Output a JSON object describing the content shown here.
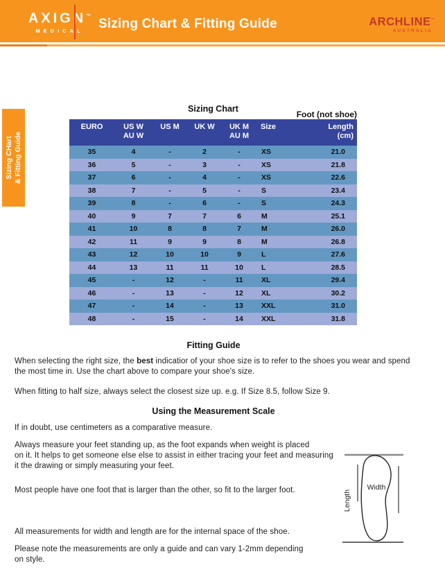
{
  "header": {
    "title": "Sizing Chart & Fitting Guide",
    "brand_left": {
      "name": "AXIGN",
      "tm": "TM",
      "sub": "MEDICAL"
    },
    "brand_right": {
      "name": "ARCHLINE",
      "tm": "TM",
      "sub": "AUSTRALIA"
    }
  },
  "side_tab": {
    "line1": "Sizing CHart",
    "line2": "& Fitting Guide"
  },
  "sizing_chart": {
    "title": "Sizing Chart",
    "note": "Foot (not shoe)",
    "columns": [
      [
        "EURO",
        ""
      ],
      [
        "US W",
        "AU W"
      ],
      [
        "US M",
        ""
      ],
      [
        "UK W",
        ""
      ],
      [
        "UK M",
        "AU M"
      ],
      [
        "Size",
        ""
      ],
      [
        "Length",
        "(cm)"
      ]
    ],
    "rows": [
      [
        "35",
        "4",
        "-",
        "2",
        "-",
        "XS",
        "21.0"
      ],
      [
        "36",
        "5",
        "-",
        "3",
        "-",
        "XS",
        "21.8"
      ],
      [
        "37",
        "6",
        "-",
        "4",
        "-",
        "XS",
        "22.6"
      ],
      [
        "38",
        "7",
        "-",
        "5",
        "-",
        "S",
        "23.4"
      ],
      [
        "39",
        "8",
        "-",
        "6",
        "-",
        "S",
        "24.3"
      ],
      [
        "40",
        "9",
        "7",
        "7",
        "6",
        "M",
        "25.1"
      ],
      [
        "41",
        "10",
        "8",
        "8",
        "7",
        "M",
        "26.0"
      ],
      [
        "42",
        "11",
        "9",
        "9",
        "8",
        "M",
        "26.8"
      ],
      [
        "43",
        "12",
        "10",
        "10",
        "9",
        "L",
        "27.6"
      ],
      [
        "44",
        "13",
        "11",
        "11",
        "10",
        "L",
        "28.5"
      ],
      [
        "45",
        "-",
        "12",
        "-",
        "11",
        "XL",
        "29.4"
      ],
      [
        "46",
        "-",
        "13",
        "-",
        "12",
        "XL",
        "30.2"
      ],
      [
        "47",
        "-",
        "14",
        "-",
        "13",
        "XXL",
        "31.0"
      ],
      [
        "48",
        "-",
        "15",
        "-",
        "14",
        "XXL",
        "31.8"
      ]
    ]
  },
  "fitting_guide": {
    "heading": "Fitting Guide",
    "p1_pre": "When selecting the right size, the ",
    "p1_bold": "best",
    "p1_post": " indicatior of your shoe size is to refer to the shoes you wear and spend\nthe most time in. Use the chart above to compare your shoe's size.",
    "p2": "When fitting to half size, always select the closest size up. e.g. If Size 8.5, follow Size 9."
  },
  "measurement": {
    "heading": "Using the Measurement Scale",
    "p1": "If in doubt, use centimeters as a comparative measure.",
    "p2": "Always measure your feet standing up, as the foot expands when weight is placed\non it. It helps to get someone else else to assist in either tracing your feet and measuring\nit the drawing or simply measuring your feet.",
    "p3": "Most people have one foot that is larger than the other, so fit to the larger foot.",
    "p4": "All measurements for width and length are for the internal space of the shoe.",
    "p5": "Please note the measurements are only a guide and can vary 1-2mm depending\non style."
  },
  "diagram": {
    "width_label": "Width",
    "length_label": "Length"
  },
  "colors": {
    "header_orange": "#f7941e",
    "accent_red": "#e8402a",
    "brand_red": "#c23826",
    "table_header_blue": "#36459c",
    "row_steel_blue": "#6398c2",
    "row_periwinkle": "#9fabd9"
  }
}
